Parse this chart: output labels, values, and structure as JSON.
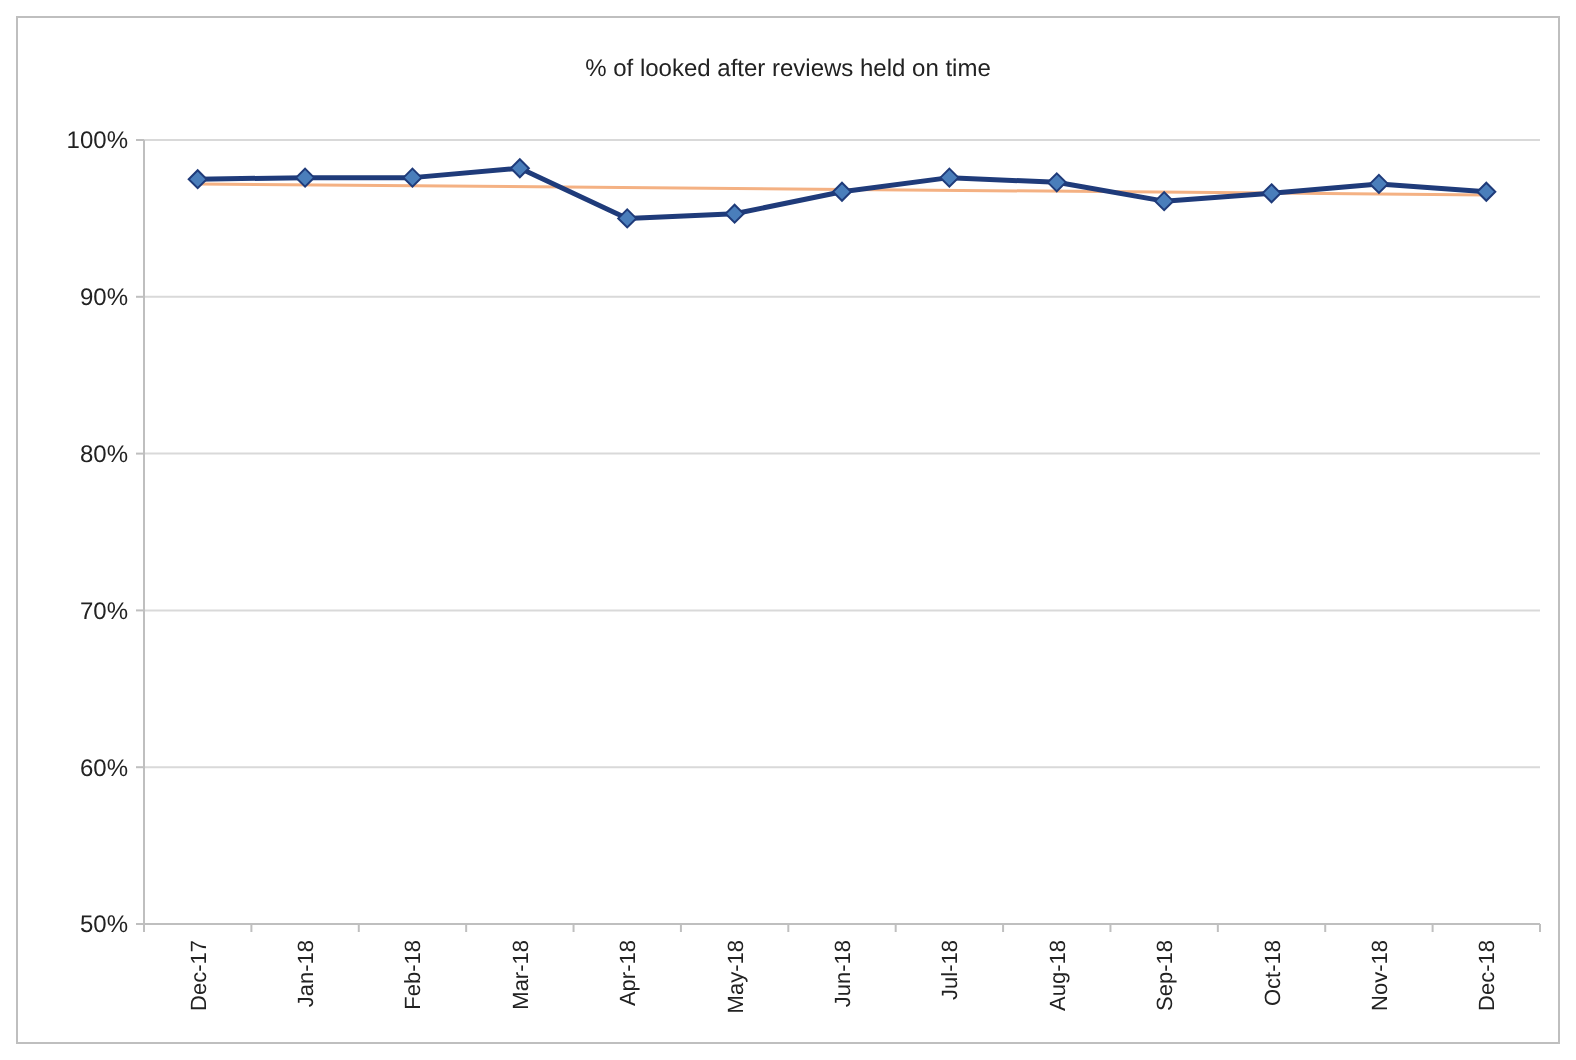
{
  "chart_data": {
    "type": "line",
    "title": "% of looked after reviews held on time",
    "categories": [
      "Dec-17",
      "Jan-18",
      "Feb-18",
      "Mar-18",
      "Apr-18",
      "May-18",
      "Jun-18",
      "Jul-18",
      "Aug-18",
      "Sep-18",
      "Oct-18",
      "Nov-18",
      "Dec-18"
    ],
    "series": [
      {
        "color": "#1f3b7a",
        "values": [
          97.5,
          97.6,
          97.6,
          98.2,
          95.0,
          95.3,
          96.7,
          97.6,
          97.3,
          96.1,
          96.6,
          97.2,
          96.7
        ],
        "marker": "diamond"
      },
      {
        "type": "line",
        "color": "#f4b183",
        "x": [
          "Dec-17",
          "Dec-18"
        ],
        "values": [
          97.2,
          96.5
        ],
        "marker": "none"
      }
    ],
    "ylim": [
      50,
      100
    ],
    "yticks": [
      {
        "value": 50,
        "label": "50%"
      },
      {
        "value": 60,
        "label": "60%"
      },
      {
        "value": 70,
        "label": "70%"
      },
      {
        "value": 80,
        "label": "80%"
      },
      {
        "value": 90,
        "label": "90%"
      },
      {
        "value": 100,
        "label": "100%"
      }
    ],
    "grid": "y"
  }
}
